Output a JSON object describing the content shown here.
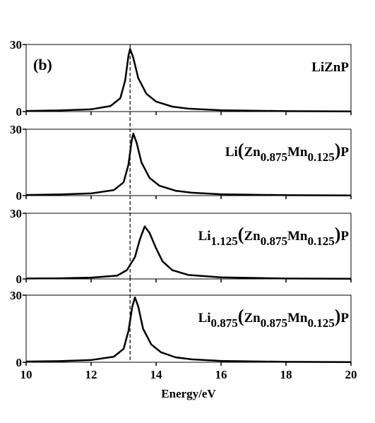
{
  "chart_data": [
    {
      "type": "line",
      "panel_label": "(b)",
      "label_parts": [
        {
          "text": "LiZnP"
        }
      ],
      "x": [
        10,
        11,
        12,
        12.6,
        12.9,
        13.05,
        13.15,
        13.2,
        13.3,
        13.45,
        13.7,
        14,
        14.5,
        15,
        16,
        18,
        20
      ],
      "values": [
        0.3,
        0.5,
        1,
        2.5,
        6,
        14,
        25,
        28,
        24,
        15,
        8,
        4.5,
        2.2,
        1.3,
        0.6,
        0.2,
        0.1
      ],
      "color": "#000000",
      "xlim": [
        10,
        20
      ],
      "ylim": [
        0,
        30
      ],
      "yticks": [
        0,
        30
      ],
      "xticks": [
        10,
        12,
        14,
        16,
        18,
        20
      ],
      "vline": 13.2
    },
    {
      "type": "line",
      "label_parts": [
        {
          "text": "Li"
        },
        {
          "text": "(",
          "size": "big"
        },
        {
          "text": "Zn"
        },
        {
          "text": "0.875",
          "baseline": "sub"
        },
        {
          "text": "Mn"
        },
        {
          "text": "0.125",
          "baseline": "sub"
        },
        {
          "text": ")",
          "size": "big"
        },
        {
          "text": "P"
        }
      ],
      "x": [
        10,
        11,
        12,
        12.7,
        13,
        13.15,
        13.25,
        13.3,
        13.4,
        13.55,
        13.8,
        14.1,
        14.6,
        15.1,
        16,
        18,
        20
      ],
      "values": [
        0.3,
        0.5,
        1,
        2.5,
        6,
        14,
        25,
        28,
        24,
        15,
        8,
        4.5,
        2.2,
        1.3,
        0.6,
        0.2,
        0.1
      ],
      "color": "#000000",
      "xlim": [
        10,
        20
      ],
      "ylim": [
        0,
        30
      ],
      "yticks": [
        0,
        30
      ],
      "xticks": [
        10,
        12,
        14,
        16,
        18,
        20
      ],
      "vline": 13.2
    },
    {
      "type": "line",
      "label_parts": [
        {
          "text": "Li"
        },
        {
          "text": "1.125",
          "baseline": "sub"
        },
        {
          "text": "(",
          "size": "big"
        },
        {
          "text": "Zn"
        },
        {
          "text": "0.875",
          "baseline": "sub"
        },
        {
          "text": "Mn"
        },
        {
          "text": "0.125",
          "baseline": "sub"
        },
        {
          "text": ")",
          "size": "big"
        },
        {
          "text": "P"
        }
      ],
      "x": [
        10,
        11,
        12,
        12.8,
        13.1,
        13.35,
        13.5,
        13.65,
        13.8,
        14,
        14.2,
        14.5,
        15,
        16,
        18,
        20
      ],
      "values": [
        0.2,
        0.3,
        0.6,
        1.5,
        4,
        10,
        18,
        24,
        21,
        14,
        8,
        4,
        1.8,
        0.7,
        0.2,
        0.1
      ],
      "color": "#000000",
      "xlim": [
        10,
        20
      ],
      "ylim": [
        0,
        30
      ],
      "yticks": [
        0,
        30
      ],
      "xticks": [
        10,
        12,
        14,
        16,
        18,
        20
      ],
      "vline": 13.2
    },
    {
      "type": "line",
      "label_parts": [
        {
          "text": "Li"
        },
        {
          "text": "0.875",
          "baseline": "sub"
        },
        {
          "text": "(",
          "size": "big"
        },
        {
          "text": "Zn"
        },
        {
          "text": "0.875",
          "baseline": "sub"
        },
        {
          "text": "Mn"
        },
        {
          "text": "0.125",
          "baseline": "sub"
        },
        {
          "text": ")",
          "size": "big"
        },
        {
          "text": "P"
        }
      ],
      "x": [
        10,
        11,
        12,
        12.7,
        13,
        13.15,
        13.27,
        13.35,
        13.45,
        13.6,
        13.85,
        14.15,
        14.6,
        15.1,
        16,
        18,
        20
      ],
      "values": [
        0.3,
        0.5,
        1,
        2.5,
        6,
        14,
        25,
        29,
        25,
        15,
        8,
        4.5,
        2.2,
        1.3,
        0.6,
        0.2,
        0.1
      ],
      "color": "#000000",
      "xlim": [
        10,
        20
      ],
      "ylim": [
        0,
        30
      ],
      "yticks": [
        0,
        30
      ],
      "xticks": [
        10,
        12,
        14,
        16,
        18,
        20
      ],
      "vline": 13.2,
      "xlabel": "Energy/eV"
    }
  ]
}
